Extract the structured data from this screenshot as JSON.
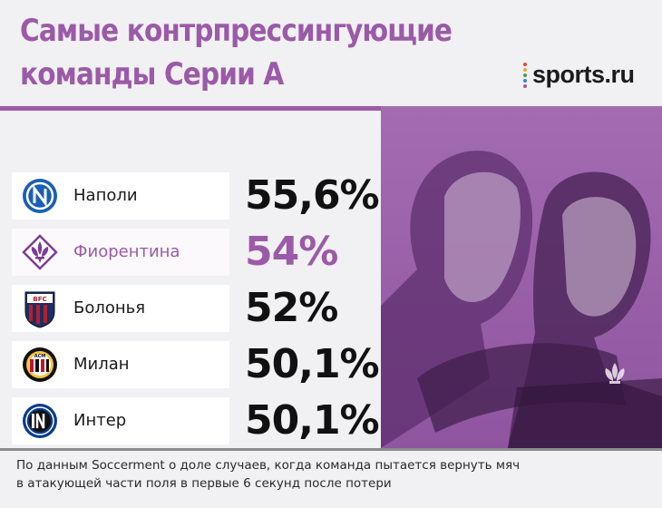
{
  "title": {
    "line1": "Самые контрпрессингующие",
    "line2": "команды Серии А"
  },
  "brand": {
    "name": "sports.ru",
    "dot_colors": [
      "#e8463b",
      "#f3a43a",
      "#3aa05a",
      "#3b7be8",
      "#9b5aa8"
    ]
  },
  "colors": {
    "accent": "#9b5aa8",
    "text": "#111111",
    "background": "#f1f0f2"
  },
  "teams": [
    {
      "name": "Наполи",
      "value": "55,6%",
      "icon": "napoli-crest-icon",
      "highlight": false
    },
    {
      "name": "Фиорентина",
      "value": "54%",
      "icon": "fiorentina-lily-icon",
      "highlight": true
    },
    {
      "name": "Болонья",
      "value": "52%",
      "icon": "bologna-crest-icon",
      "highlight": false
    },
    {
      "name": "Милан",
      "value": "50,1%",
      "icon": "milan-crest-icon",
      "highlight": false
    },
    {
      "name": "Интер",
      "value": "50,1%",
      "icon": "inter-crest-icon",
      "highlight": false
    }
  ],
  "footnote": {
    "line1": "По данным Soccerment о доле случаев, когда команда пытается вернуть мяч",
    "line2": "в атакующей части поля в первые 6 секунд после потери"
  }
}
